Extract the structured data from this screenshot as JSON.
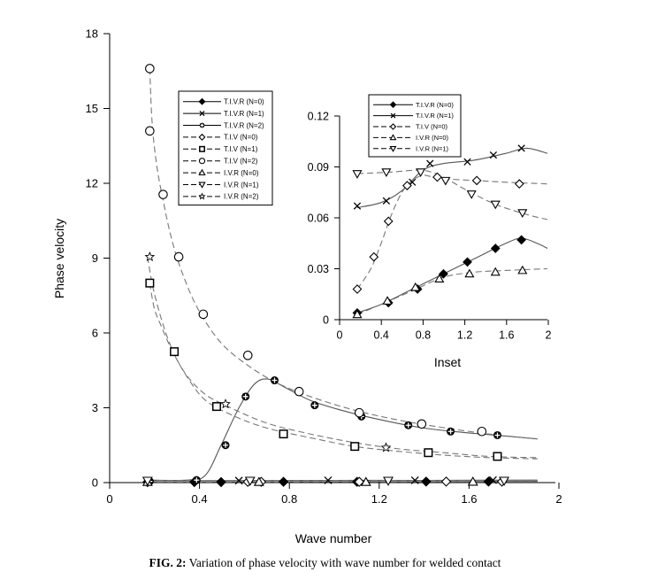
{
  "caption": {
    "label": "FIG.  2:",
    "text": " Variation of phase velocity with wave number for welded contact"
  },
  "chart_data": [
    {
      "type": "line",
      "xlabel": "Wave number",
      "ylabel": "Phase velocity",
      "xlim": [
        0,
        2
      ],
      "ylim": [
        0,
        18
      ],
      "xticks": [
        "0",
        "0.4",
        "0.8",
        "1.2",
        "1.6",
        "2"
      ],
      "yticks": [
        "0",
        "3",
        "6",
        "9",
        "12",
        "15",
        "18"
      ],
      "legend_position": "top-left",
      "series": [
        {
          "name": "T.I.V.R (N=0)",
          "marker": "diamond-filled",
          "dash": "solid",
          "curve": [
            [
              0.17,
              0.02
            ],
            [
              0.6,
              0.03
            ],
            [
              1.0,
              0.04
            ],
            [
              1.4,
              0.04
            ],
            [
              1.92,
              0.05
            ]
          ],
          "x": [
            0.17,
            0.38,
            0.5,
            0.78,
            1.11,
            1.42,
            1.7
          ],
          "y": [
            0.02,
            0.02,
            0.02,
            0.03,
            0.03,
            0.04,
            0.04
          ]
        },
        {
          "name": "T.I.V.R (N=1)",
          "marker": "x",
          "dash": "solid",
          "curve": [
            [
              0.17,
              0.07
            ],
            [
              0.6,
              0.08
            ],
            [
              1.0,
              0.09
            ],
            [
              1.4,
              0.09
            ],
            [
              1.92,
              0.1
            ]
          ],
          "x": [
            0.17,
            0.58,
            0.98,
            1.37,
            1.72
          ],
          "y": [
            0.07,
            0.08,
            0.09,
            0.09,
            0.1
          ]
        },
        {
          "name": "T.I.V.R (N=2)",
          "marker": "plus-circle",
          "dash": "solid",
          "curve": [
            [
              0.17,
              0.1
            ],
            [
              0.35,
              0.1
            ],
            [
              0.43,
              0.3
            ],
            [
              0.5,
              1.5
            ],
            [
              0.58,
              3.0
            ],
            [
              0.65,
              3.95
            ],
            [
              0.71,
              4.15
            ],
            [
              0.78,
              3.85
            ],
            [
              0.9,
              3.3
            ],
            [
              1.04,
              2.9
            ],
            [
              1.2,
              2.55
            ],
            [
              1.4,
              2.2
            ],
            [
              1.6,
              2.0
            ],
            [
              1.8,
              1.85
            ],
            [
              1.92,
              1.75
            ]
          ],
          "x": [
            0.18,
            0.39,
            0.52,
            0.61,
            0.74,
            0.92,
            1.13,
            1.34,
            1.53,
            1.74
          ],
          "y": [
            0.05,
            0.1,
            1.5,
            3.45,
            4.1,
            3.1,
            2.65,
            2.3,
            2.05,
            1.9
          ]
        },
        {
          "name": "T.I.V (N=0)",
          "marker": "diamond-open",
          "dash": "dashed",
          "curve": [
            [
              0.17,
              0.02
            ],
            [
              0.6,
              0.03
            ],
            [
              1.0,
              0.04
            ],
            [
              1.4,
              0.04
            ],
            [
              1.92,
              0.05
            ]
          ],
          "x": [
            0.62,
            0.68,
            1.12,
            1.51,
            1.76
          ],
          "y": [
            0.03,
            0.03,
            0.03,
            0.04,
            0.04
          ]
        },
        {
          "name": "T.I.V (N=1)",
          "marker": "square-open",
          "dash": "dashed",
          "curve": [
            [
              0.18,
              8.0
            ],
            [
              0.2,
              7.0
            ],
            [
              0.23,
              6.3
            ],
            [
              0.28,
              5.3
            ],
            [
              0.35,
              4.2
            ],
            [
              0.43,
              3.3
            ],
            [
              0.55,
              2.7
            ],
            [
              0.7,
              2.2
            ],
            [
              0.9,
              1.8
            ],
            [
              1.1,
              1.45
            ],
            [
              1.3,
              1.25
            ],
            [
              1.5,
              1.1
            ],
            [
              1.7,
              1.0
            ],
            [
              1.92,
              0.95
            ]
          ],
          "x": [
            0.18,
            0.29,
            0.48,
            0.78,
            1.1,
            1.43,
            1.74
          ],
          "y": [
            8.0,
            5.25,
            3.05,
            1.95,
            1.45,
            1.2,
            1.05
          ]
        },
        {
          "name": "T.I.V (N=2)",
          "marker": "circle-open",
          "dash": "dashed",
          "curve": [
            [
              0.18,
              16.6
            ],
            [
              0.19,
              14.5
            ],
            [
              0.21,
              12.8
            ],
            [
              0.24,
              11.3
            ],
            [
              0.28,
              9.7
            ],
            [
              0.33,
              8.3
            ],
            [
              0.4,
              6.9
            ],
            [
              0.5,
              5.6
            ],
            [
              0.62,
              4.7
            ],
            [
              0.75,
              4.0
            ],
            [
              0.9,
              3.45
            ],
            [
              1.1,
              2.9
            ],
            [
              1.3,
              2.5
            ],
            [
              1.5,
              2.2
            ],
            [
              1.7,
              1.95
            ],
            [
              1.92,
              1.75
            ]
          ],
          "x": [
            0.18,
            0.18,
            0.24,
            0.31,
            0.42,
            0.62,
            0.85,
            1.12,
            1.4,
            1.67
          ],
          "y": [
            16.6,
            14.1,
            11.55,
            9.05,
            6.75,
            5.1,
            3.65,
            2.8,
            2.35,
            2.05
          ]
        },
        {
          "name": "I.V.R (N=0)",
          "marker": "triangle-up",
          "dash": "dashed",
          "curve": [
            [
              0.17,
              0.02
            ],
            [
              0.6,
              0.02
            ],
            [
              1.0,
              0.03
            ],
            [
              1.4,
              0.03
            ],
            [
              1.92,
              0.03
            ]
          ],
          "x": [
            0.17,
            0.67,
            1.15,
            1.63
          ],
          "y": [
            0.02,
            0.02,
            0.02,
            0.03
          ]
        },
        {
          "name": "I.V.R (N=1)",
          "marker": "triangle-down",
          "dash": "dashed",
          "curve": [
            [
              0.17,
              0.08
            ],
            [
              0.6,
              0.08
            ],
            [
              1.0,
              0.08
            ],
            [
              1.4,
              0.08
            ],
            [
              1.92,
              0.08
            ]
          ],
          "x": [
            0.17,
            0.63,
            1.25,
            1.77
          ],
          "y": [
            0.08,
            0.08,
            0.08,
            0.08
          ]
        },
        {
          "name": "I.V.R (N=2)",
          "marker": "star",
          "dash": "dashed",
          "curve": [
            [
              0.17,
              9.05
            ],
            [
              0.2,
              7.6
            ],
            [
              0.26,
              5.8
            ],
            [
              0.33,
              4.5
            ],
            [
              0.42,
              3.6
            ],
            [
              0.52,
              3.1
            ],
            [
              0.7,
              2.4
            ],
            [
              0.9,
              1.95
            ],
            [
              1.1,
              1.6
            ],
            [
              1.3,
              1.35
            ],
            [
              1.5,
              1.2
            ],
            [
              1.7,
              1.05
            ],
            [
              1.92,
              1.0
            ]
          ],
          "x": [
            0.18,
            0.52,
            1.24
          ],
          "y": [
            9.05,
            3.15,
            1.4
          ]
        }
      ]
    },
    {
      "type": "line",
      "xlabel": "Inset",
      "ylabel": "",
      "xlim": [
        0,
        2
      ],
      "ylim": [
        0,
        0.12
      ],
      "xticks": [
        "0",
        "0.4",
        "0.8",
        "1.2",
        "1.6",
        "2"
      ],
      "yticks": [
        "0",
        "0.03",
        "0.06",
        "0.09",
        "0.12"
      ],
      "legend_position": "top-left",
      "series": [
        {
          "name": "T.I.V.R (N=0)",
          "marker": "diamond-filled",
          "dash": "solid",
          "curve": [
            [
              0.17,
              0.004
            ],
            [
              0.4,
              0.009
            ],
            [
              0.7,
              0.018
            ],
            [
              1.0,
              0.027
            ],
            [
              1.3,
              0.036
            ],
            [
              1.6,
              0.045
            ],
            [
              1.75,
              0.048
            ],
            [
              1.9,
              0.045
            ],
            [
              2.0,
              0.042
            ]
          ],
          "x": [
            0.17,
            0.47,
            0.75,
            1.0,
            1.23,
            1.5,
            1.75
          ],
          "y": [
            0.004,
            0.01,
            0.018,
            0.027,
            0.034,
            0.042,
            0.047
          ]
        },
        {
          "name": "T.I.V.R (N=1)",
          "marker": "x",
          "dash": "solid",
          "curve": [
            [
              0.17,
              0.066
            ],
            [
              0.4,
              0.069
            ],
            [
              0.6,
              0.076
            ],
            [
              0.8,
              0.088
            ],
            [
              1.0,
              0.092
            ],
            [
              1.3,
              0.094
            ],
            [
              1.6,
              0.098
            ],
            [
              1.8,
              0.101
            ],
            [
              2.0,
              0.098
            ]
          ],
          "x": [
            0.17,
            0.45,
            0.7,
            0.87,
            1.23,
            1.48,
            1.75
          ],
          "y": [
            0.067,
            0.07,
            0.081,
            0.092,
            0.093,
            0.097,
            0.101
          ]
        },
        {
          "name": "T.I.V (N=0)",
          "marker": "diamond-open",
          "dash": "dashed",
          "curve": [
            [
              0.17,
              0.018
            ],
            [
              0.3,
              0.03
            ],
            [
              0.4,
              0.045
            ],
            [
              0.5,
              0.062
            ],
            [
              0.6,
              0.075
            ],
            [
              0.7,
              0.082
            ],
            [
              0.8,
              0.085
            ],
            [
              0.9,
              0.084
            ],
            [
              1.0,
              0.083
            ],
            [
              1.3,
              0.082
            ],
            [
              1.6,
              0.081
            ],
            [
              2.0,
              0.08
            ]
          ],
          "x": [
            0.17,
            0.33,
            0.47,
            0.65,
            0.94,
            1.32,
            1.73
          ],
          "y": [
            0.018,
            0.037,
            0.058,
            0.079,
            0.084,
            0.082,
            0.08
          ]
        },
        {
          "name": "I.V.R (N=0)",
          "marker": "triangle-up",
          "dash": "dashed",
          "curve": [
            [
              0.17,
              0.003
            ],
            [
              0.4,
              0.009
            ],
            [
              0.7,
              0.017
            ],
            [
              1.0,
              0.025
            ],
            [
              1.3,
              0.028
            ],
            [
              1.6,
              0.029
            ],
            [
              2.0,
              0.03
            ]
          ],
          "x": [
            0.17,
            0.46,
            0.73,
            0.96,
            1.25,
            1.5,
            1.76
          ],
          "y": [
            0.003,
            0.011,
            0.019,
            0.024,
            0.027,
            0.028,
            0.029
          ]
        },
        {
          "name": "I.V.R (N=1)",
          "marker": "triangle-down",
          "dash": "dashed",
          "curve": [
            [
              0.17,
              0.086
            ],
            [
              0.5,
              0.087
            ],
            [
              0.8,
              0.088
            ],
            [
              1.0,
              0.084
            ],
            [
              1.2,
              0.077
            ],
            [
              1.5,
              0.068
            ],
            [
              1.8,
              0.062
            ],
            [
              2.0,
              0.059
            ]
          ],
          "x": [
            0.17,
            0.45,
            0.78,
            1.02,
            1.27,
            1.5,
            1.76
          ],
          "y": [
            0.086,
            0.087,
            0.087,
            0.082,
            0.074,
            0.068,
            0.063
          ]
        }
      ]
    }
  ]
}
